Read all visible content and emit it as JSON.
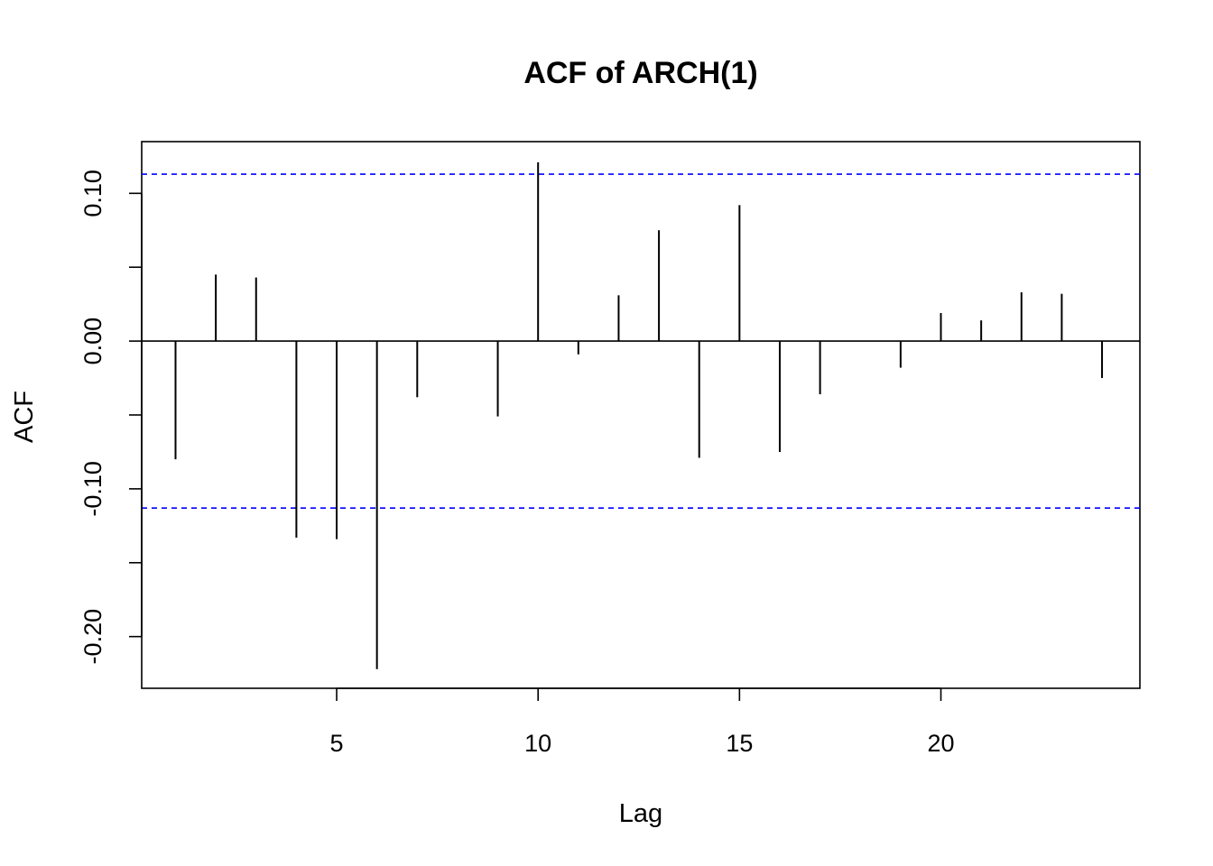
{
  "chart_data": {
    "type": "bar",
    "title": "ACF of ARCH(1)",
    "xlabel": "Lag",
    "ylabel": "ACF",
    "xlim": [
      0.16,
      24.94
    ],
    "ylim": [
      -0.235,
      0.135
    ],
    "x_ticks": [
      5,
      10,
      15,
      20
    ],
    "x_tick_labels": [
      "5",
      "10",
      "15",
      "20"
    ],
    "y_ticks": [
      -0.2,
      -0.15,
      -0.1,
      -0.05,
      0.0,
      0.05,
      0.1
    ],
    "y_tick_labels": [
      "-0.20",
      "",
      "-0.10",
      "",
      "0.00",
      "",
      "0.10"
    ],
    "lags": [
      1,
      2,
      3,
      4,
      5,
      6,
      7,
      8,
      9,
      10,
      11,
      12,
      13,
      14,
      15,
      16,
      17,
      18,
      19,
      20,
      21,
      22,
      23,
      24
    ],
    "values": [
      -0.08,
      0.045,
      0.043,
      -0.133,
      -0.134,
      -0.222,
      -0.038,
      0.0,
      -0.051,
      0.121,
      -0.009,
      0.031,
      0.075,
      -0.079,
      0.092,
      -0.075,
      -0.036,
      0.0,
      -0.018,
      0.019,
      0.014,
      0.033,
      0.032,
      -0.025
    ],
    "confidence_limits": [
      0.113,
      -0.113
    ],
    "confidence_color": "#0000ff",
    "bar_color": "#000000",
    "grid": false,
    "legend": "none"
  }
}
